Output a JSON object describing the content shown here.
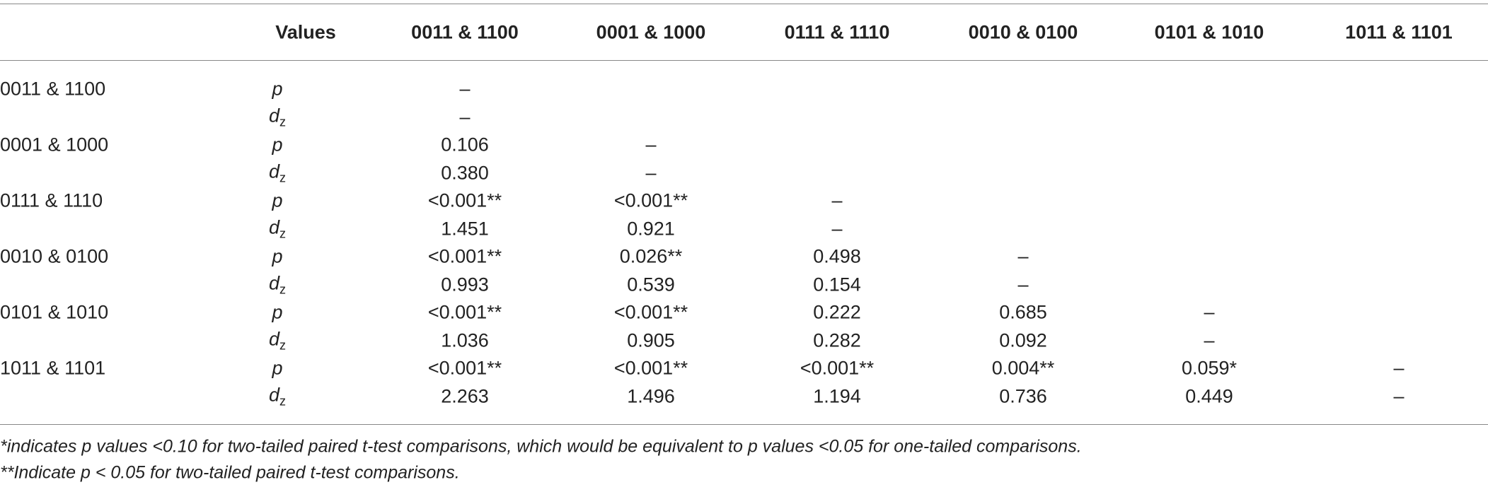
{
  "table": {
    "header": [
      "Values",
      "0011 & 1100",
      "0001 & 1000",
      "0111 & 1110",
      "0010 & 0100",
      "0101 & 1010",
      "1011 & 1101"
    ],
    "rows": [
      {
        "group": "0011 & 1100",
        "stat": "p",
        "cells": [
          "–"
        ]
      },
      {
        "stat": "d",
        "stat_sub": "z",
        "cells": [
          "–"
        ]
      },
      {
        "group": "0001 & 1000",
        "stat": "p",
        "cells": [
          "0.106",
          "–"
        ]
      },
      {
        "stat": "d",
        "stat_sub": "z",
        "cells": [
          "0.380",
          "–"
        ]
      },
      {
        "group": "0111 & 1110",
        "stat": "p",
        "cells": [
          "<0.001**",
          "<0.001**",
          "–"
        ]
      },
      {
        "stat": "d",
        "stat_sub": "z",
        "cells": [
          "1.451",
          "0.921",
          "–"
        ]
      },
      {
        "group": "0010 & 0100",
        "stat": "p",
        "cells": [
          "<0.001**",
          "0.026**",
          "0.498",
          "–"
        ]
      },
      {
        "stat": "d",
        "stat_sub": "z",
        "cells": [
          "0.993",
          "0.539",
          "0.154",
          "–"
        ]
      },
      {
        "group": "0101 & 1010",
        "stat": "p",
        "cells": [
          "<0.001**",
          "<0.001**",
          "0.222",
          "0.685",
          "–"
        ]
      },
      {
        "stat": "d",
        "stat_sub": "z",
        "cells": [
          "1.036",
          "0.905",
          "0.282",
          "0.092",
          "–"
        ]
      },
      {
        "group": "1011 & 1101",
        "stat": "p",
        "cells": [
          "<0.001**",
          "<0.001**",
          "<0.001**",
          "0.004**",
          "0.059*",
          "–"
        ]
      },
      {
        "stat": "d",
        "stat_sub": "z",
        "cells": [
          "2.263",
          "1.496",
          "1.194",
          "0.736",
          "0.449",
          "–"
        ]
      }
    ],
    "footnotes": [
      "*indicates p values <0.10 for two-tailed paired t-test comparisons, which would be equivalent to p values <0.05 for one-tailed comparisons.",
      "**Indicate p < 0.05 for two-tailed paired t-test comparisons."
    ]
  }
}
